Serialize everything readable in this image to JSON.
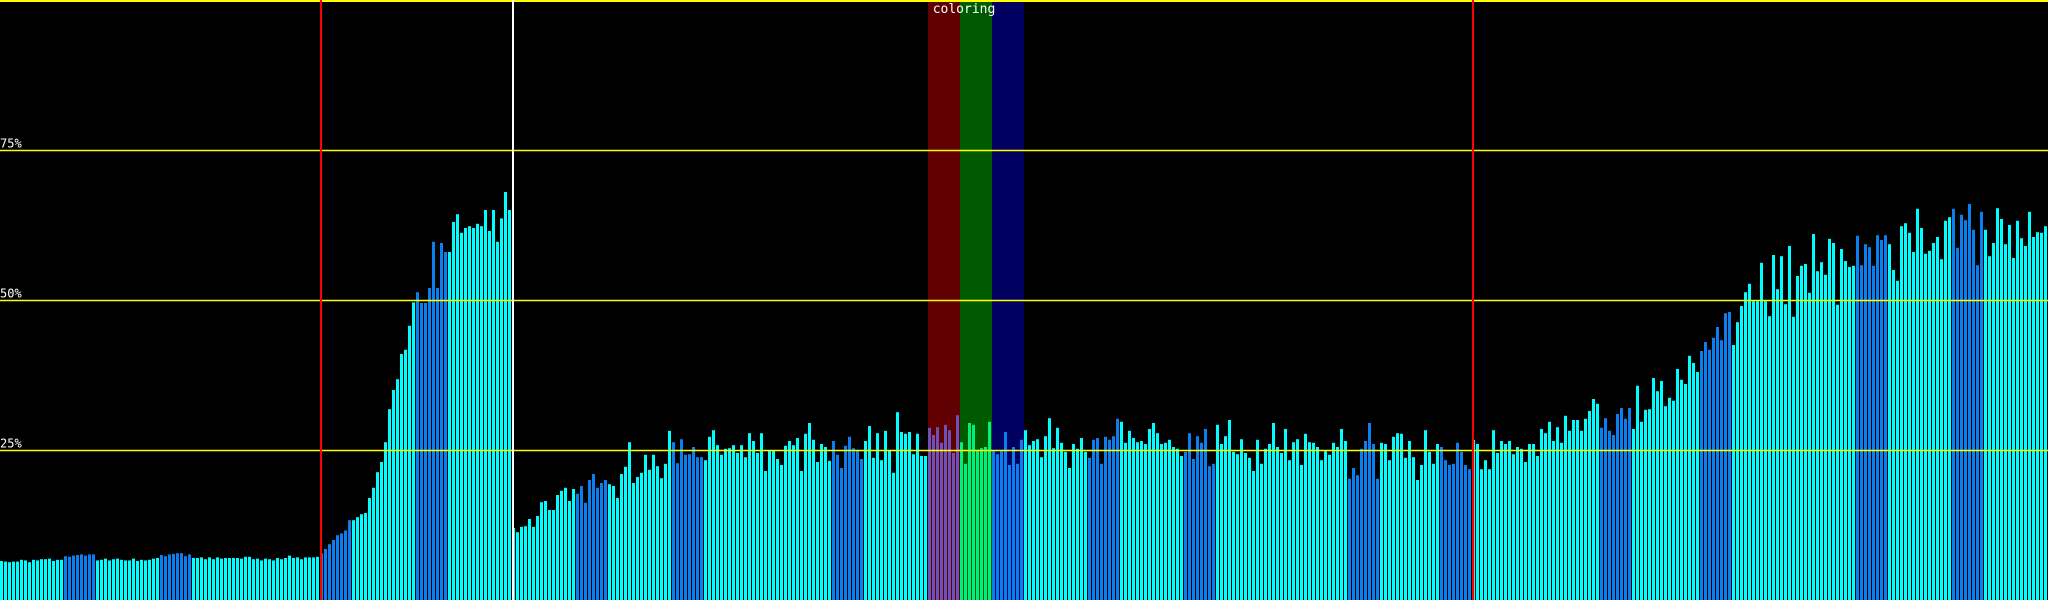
{
  "chart_data": {
    "type": "bar",
    "title": "",
    "xlabel": "",
    "ylabel": "",
    "ylim": [
      0,
      100
    ],
    "y_ticks": [
      {
        "value": 75,
        "label": "75%"
      },
      {
        "value": 50,
        "label": "50%"
      },
      {
        "value": 25,
        "label": "25%"
      }
    ],
    "grid": true,
    "top_line_value": 100,
    "values": [
      6.5,
      6.4,
      6.3,
      6.4,
      6.4,
      6.7,
      6.6,
      6.3,
      6.7,
      6.6,
      6.8,
      6.8,
      6.9,
      6.5,
      6.7,
      6.7,
      7.3,
      7.2,
      7.4,
      7.5,
      7.6,
      7.4,
      7.6,
      7.6,
      6.6,
      6.7,
      6.9,
      6.6,
      6.8,
      6.9,
      6.7,
      6.6,
      6.6,
      6.9,
      6.5,
      6.7,
      6.6,
      6.7,
      6.9,
      7.0,
      7.5,
      7.3,
      7.6,
      7.7,
      7.8,
      7.8,
      7.3,
      7.6,
      7.0,
      7.0,
      7.1,
      6.8,
      7.1,
      6.8,
      7.1,
      6.9,
      7.0,
      7.0,
      7.0,
      7.0,
      6.9,
      7.2,
      7.2,
      6.8,
      6.9,
      6.6,
      6.9,
      6.8,
      6.6,
      7.0,
      6.8,
      7.0,
      7.4,
      7.0,
      7.1,
      6.8,
      7.1,
      7.1,
      7.1,
      7.2,
      7.8,
      8.5,
      9.3,
      10,
      10.8,
      11.1,
      11.6,
      13.3,
      13.3,
      13.8,
      14.3,
      14.5,
      17,
      18.7,
      21.3,
      23,
      26.3,
      31.8,
      35,
      36.8,
      41,
      41.7,
      45.7,
      49.6,
      51.3,
      49.5,
      49.5,
      52,
      59.7,
      52,
      59.5,
      58,
      58,
      63,
      64.3,
      61.2,
      62,
      62.3,
      62,
      62.7,
      62.3,
      65,
      61.5,
      65,
      59.7,
      63.6,
      68,
      65,
      12.0,
      11.3,
      12.2,
      12.3,
      13.5,
      12.2,
      14,
      16.3,
      16.5,
      15,
      15,
      17.5,
      18.2,
      18.7,
      16.5,
      18.5,
      17.7,
      19,
      16.2,
      20,
      21,
      18.7,
      19.5,
      20,
      19.3,
      19,
      17,
      21,
      22.2,
      26.3,
      19.5,
      20.5,
      21.2,
      24.2,
      21.7,
      24.2,
      22.3,
      20.3,
      22.7,
      28.2,
      26.3,
      22.8,
      26.8,
      24.2,
      24.3,
      25.5,
      23.8,
      23.8,
      23.3,
      27.2,
      28.3,
      25.8,
      24.2,
      25.2,
      25.3,
      25.8,
      24.5,
      25.8,
      23.8,
      27.8,
      26.5,
      24.5,
      27.8,
      21.5,
      25,
      25,
      23.5,
      22.5,
      25.7,
      26.5,
      25.8,
      27,
      21.5,
      27.7,
      29.5,
      26.7,
      23,
      26,
      25.5,
      23.2,
      26.5,
      24.2,
      22,
      25.7,
      27.2,
      25.3,
      25,
      23.5,
      26.5,
      29,
      23.7,
      27.8,
      23.3,
      28.2,
      25,
      21.2,
      31.3,
      28,
      27.7,
      28,
      24.3,
      27.7,
      24,
      24.0,
      28.7,
      27.5,
      28.8,
      26.2,
      29.2,
      28.3,
      24.5,
      30.8,
      26.3,
      22.7,
      29.5,
      29.2,
      24.8,
      25.3,
      25.5,
      29.7,
      24.8,
      24.3,
      24.8,
      28,
      22.5,
      25.5,
      22.7,
      26.7,
      28.3,
      25.8,
      26.5,
      26.8,
      23.8,
      27.3,
      30.3,
      25.3,
      28.7,
      26.2,
      24.7,
      22,
      26,
      25.2,
      27,
      24.7,
      23.7,
      26.7,
      27,
      22.7,
      27.2,
      26.7,
      27.3,
      30.2,
      29.7,
      26.2,
      28.2,
      27,
      26.3,
      26.5,
      26,
      28.5,
      29.5,
      27.8,
      26,
      26.2,
      26.7,
      25.5,
      25.2,
      24,
      24.7,
      27.8,
      23.5,
      27.3,
      26.2,
      28.5,
      22.3,
      22.7,
      29.2,
      26,
      27.3,
      30,
      24.7,
      24.3,
      26.8,
      24.5,
      23.7,
      21.5,
      26.7,
      22.7,
      25.2,
      26,
      29.5,
      25.5,
      24.5,
      28.5,
      23.3,
      26.3,
      26.8,
      22.5,
      27.7,
      26.3,
      26.2,
      25.5,
      23.3,
      24.8,
      24.2,
      26.2,
      25.5,
      28.5,
      26.5,
      20.2,
      22,
      20.8,
      25.2,
      26.5,
      29.5,
      26,
      20.2,
      26.2,
      26,
      23.3,
      27.2,
      27.8,
      27.7,
      23.7,
      26.5,
      23.8,
      20,
      22.5,
      28.3,
      24.7,
      22.7,
      26,
      25.5,
      23.3,
      22.5,
      22.7,
      26.2,
      24.7,
      22.5,
      21.8,
      26.7,
      26,
      21.8,
      23.3,
      21.8,
      28.3,
      24.5,
      26.5,
      26,
      26.5,
      24.3,
      25.5,
      25.2,
      23,
      26,
      26,
      24,
      28.5,
      27.8,
      29.7,
      26.5,
      28.8,
      26.2,
      30.7,
      28.2,
      30,
      30,
      28.2,
      30.2,
      31.5,
      33.5,
      32.7,
      28.7,
      30.3,
      28.2,
      27.5,
      31,
      32,
      30.2,
      32,
      28.5,
      35.7,
      29.7,
      31.7,
      31.8,
      37,
      34.8,
      36.5,
      32.3,
      33.7,
      33.2,
      38.5,
      36.7,
      36,
      40.7,
      39.5,
      38,
      41.5,
      43,
      41.7,
      43.7,
      45.5,
      43.3,
      47.8,
      48,
      42.5,
      46.3,
      49,
      51.3,
      52.7,
      49.8,
      49.8,
      56.2,
      49.8,
      47.3,
      57.5,
      51.8,
      57.3,
      49.3,
      59,
      47.2,
      54,
      55.7,
      56,
      51.2,
      61,
      54.8,
      56.3,
      54.2,
      60.2,
      59.5,
      49.2,
      58.5,
      56.5,
      55.5,
      55.7,
      60.7,
      55.8,
      59.3,
      58.8,
      55.7,
      60.8,
      60,
      60.8,
      59.3,
      55,
      53.2,
      62.3,
      62.8,
      61.2,
      58,
      65.2,
      62,
      57.7,
      58.2,
      59.5,
      60.5,
      56.8,
      63.2,
      63.8,
      65.2,
      58.7,
      64.2,
      63.3,
      66,
      61.7,
      55.8,
      64.7,
      61.7,
      57.3,
      59.5,
      65.3,
      63.5,
      59.3,
      62.5,
      57,
      63.2,
      60.3,
      59,
      64.7,
      60.5,
      61.3,
      61.2,
      62.3
    ],
    "alt_color_bar_ranges": [
      [
        16,
        23
      ],
      [
        40,
        47
      ],
      [
        80,
        87
      ],
      [
        104,
        111
      ],
      [
        144,
        151
      ],
      [
        168,
        175
      ],
      [
        208,
        215
      ],
      [
        272,
        279
      ],
      [
        296,
        303
      ],
      [
        337,
        344
      ],
      [
        360,
        367
      ],
      [
        400,
        407
      ],
      [
        425,
        432
      ],
      [
        464,
        471
      ],
      [
        488,
        495
      ]
    ],
    "markers": [
      {
        "bar": 80,
        "color": "#ff0000"
      },
      {
        "bar": 128,
        "color": "#ffffff"
      },
      {
        "bar": 368,
        "color": "#ff0000"
      }
    ],
    "highlight": {
      "label": "coloring",
      "bands": [
        {
          "from_bar": 232,
          "to_bar": 239,
          "bg": "#600000",
          "bar_color": "#6a52b8"
        },
        {
          "from_bar": 240,
          "to_bar": 247,
          "bg": "#005a00",
          "bar_color": "#00f080"
        },
        {
          "from_bar": 248,
          "to_bar": 255,
          "bg": "#000060",
          "bar_color": "#0a80f0"
        }
      ]
    },
    "colors": {
      "background": "#000000",
      "bar_primary": "#00ffff",
      "bar_alt": "#0a80f0",
      "grid": "#ffff00",
      "tick_label": "#ffffff"
    }
  }
}
